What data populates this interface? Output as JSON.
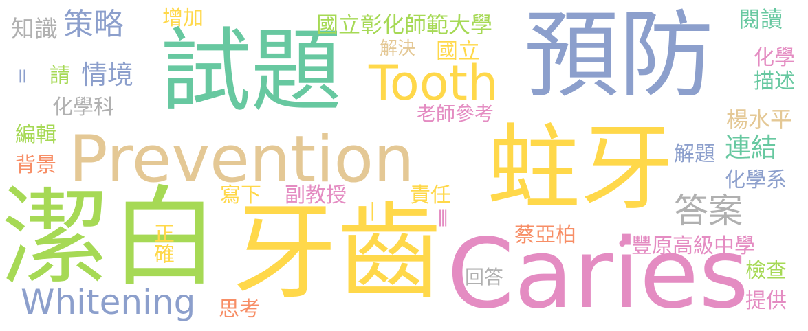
{
  "palette": {
    "green": "#67c8a0",
    "lime": "#a6d955",
    "yellow": "#ffd84a",
    "tan": "#e4c895",
    "periwinkle": "#8c9fcc",
    "pink": "#e48cc2",
    "orange": "#f78e66",
    "gray": "#b0b0b0"
  },
  "words": [
    {
      "id": "shiti",
      "text": "試題",
      "color": "green"
    },
    {
      "id": "yufang",
      "text": "預防",
      "color": "periwinkle"
    },
    {
      "id": "jiebai",
      "text": "潔白",
      "color": "lime"
    },
    {
      "id": "zhuya",
      "text": "蛀牙",
      "color": "yellow"
    },
    {
      "id": "yachi",
      "text": "牙齒",
      "color": "yellow"
    },
    {
      "id": "caries",
      "text": "Caries",
      "color": "pink"
    },
    {
      "id": "prevention",
      "text": "Prevention",
      "color": "tan"
    },
    {
      "id": "tooth",
      "text": "Tooth",
      "color": "yellow"
    },
    {
      "id": "whitening",
      "text": "Whitening",
      "color": "periwinkle"
    },
    {
      "id": "cel",
      "text": "策略",
      "color": "periwinkle"
    },
    {
      "id": "zhishi",
      "text": "知識",
      "color": "gray"
    },
    {
      "id": "zengjia",
      "text": "增加",
      "color": "yellow"
    },
    {
      "id": "guolizhanghua",
      "text": "國立彰化師範大學",
      "color": "lime"
    },
    {
      "id": "yuedu",
      "text": "閱讀",
      "color": "green"
    },
    {
      "id": "jiejue",
      "text": "解決",
      "color": "tan"
    },
    {
      "id": "guoli",
      "text": "國立",
      "color": "yellow"
    },
    {
      "id": "qingjing",
      "text": "情境",
      "color": "periwinkle"
    },
    {
      "id": "qing",
      "text": "請",
      "color": "lime"
    },
    {
      "id": "eq",
      "text": "=",
      "color": "periwinkle"
    },
    {
      "id": "huaxueke",
      "text": "化學科",
      "color": "gray"
    },
    {
      "id": "huaxue",
      "text": "化學",
      "color": "pink"
    },
    {
      "id": "miaoshu",
      "text": "描述",
      "color": "green"
    },
    {
      "id": "laoshi",
      "text": "老師參考",
      "color": "pink"
    },
    {
      "id": "bianji",
      "text": "編輯",
      "color": "lime"
    },
    {
      "id": "beijing",
      "text": "背景",
      "color": "orange"
    },
    {
      "id": "yangshuiping",
      "text": "楊水平",
      "color": "tan"
    },
    {
      "id": "lianjie",
      "text": "連結",
      "color": "green"
    },
    {
      "id": "jieti",
      "text": "解題",
      "color": "periwinkle"
    },
    {
      "id": "huaxuexi",
      "text": "化學系",
      "color": "periwinkle"
    },
    {
      "id": "daan",
      "text": "答案",
      "color": "gray"
    },
    {
      "id": "xiexia",
      "text": "寫下",
      "color": "yellow"
    },
    {
      "id": "fujiaoshou",
      "text": "副教授",
      "color": "pink"
    },
    {
      "id": "zeren",
      "text": "責任",
      "color": "yellow"
    },
    {
      "id": "bar1",
      "text": "|",
      "color": "yellow"
    },
    {
      "id": "bar3",
      "text": "|||",
      "color": "pink"
    },
    {
      "id": "zhengque",
      "text": "正確",
      "color": "yellow"
    },
    {
      "id": "caiyabo",
      "text": "蔡亞柏",
      "color": "orange"
    },
    {
      "id": "fengyuan",
      "text": "豐原高級中學",
      "color": "pink"
    },
    {
      "id": "dot",
      "text": "•",
      "color": "pink"
    },
    {
      "id": "huida",
      "text": "回答",
      "color": "gray"
    },
    {
      "id": "jiancha",
      "text": "檢查",
      "color": "lime"
    },
    {
      "id": "sikao",
      "text": "思考",
      "color": "orange"
    },
    {
      "id": "tigong",
      "text": "提供",
      "color": "pink"
    }
  ]
}
